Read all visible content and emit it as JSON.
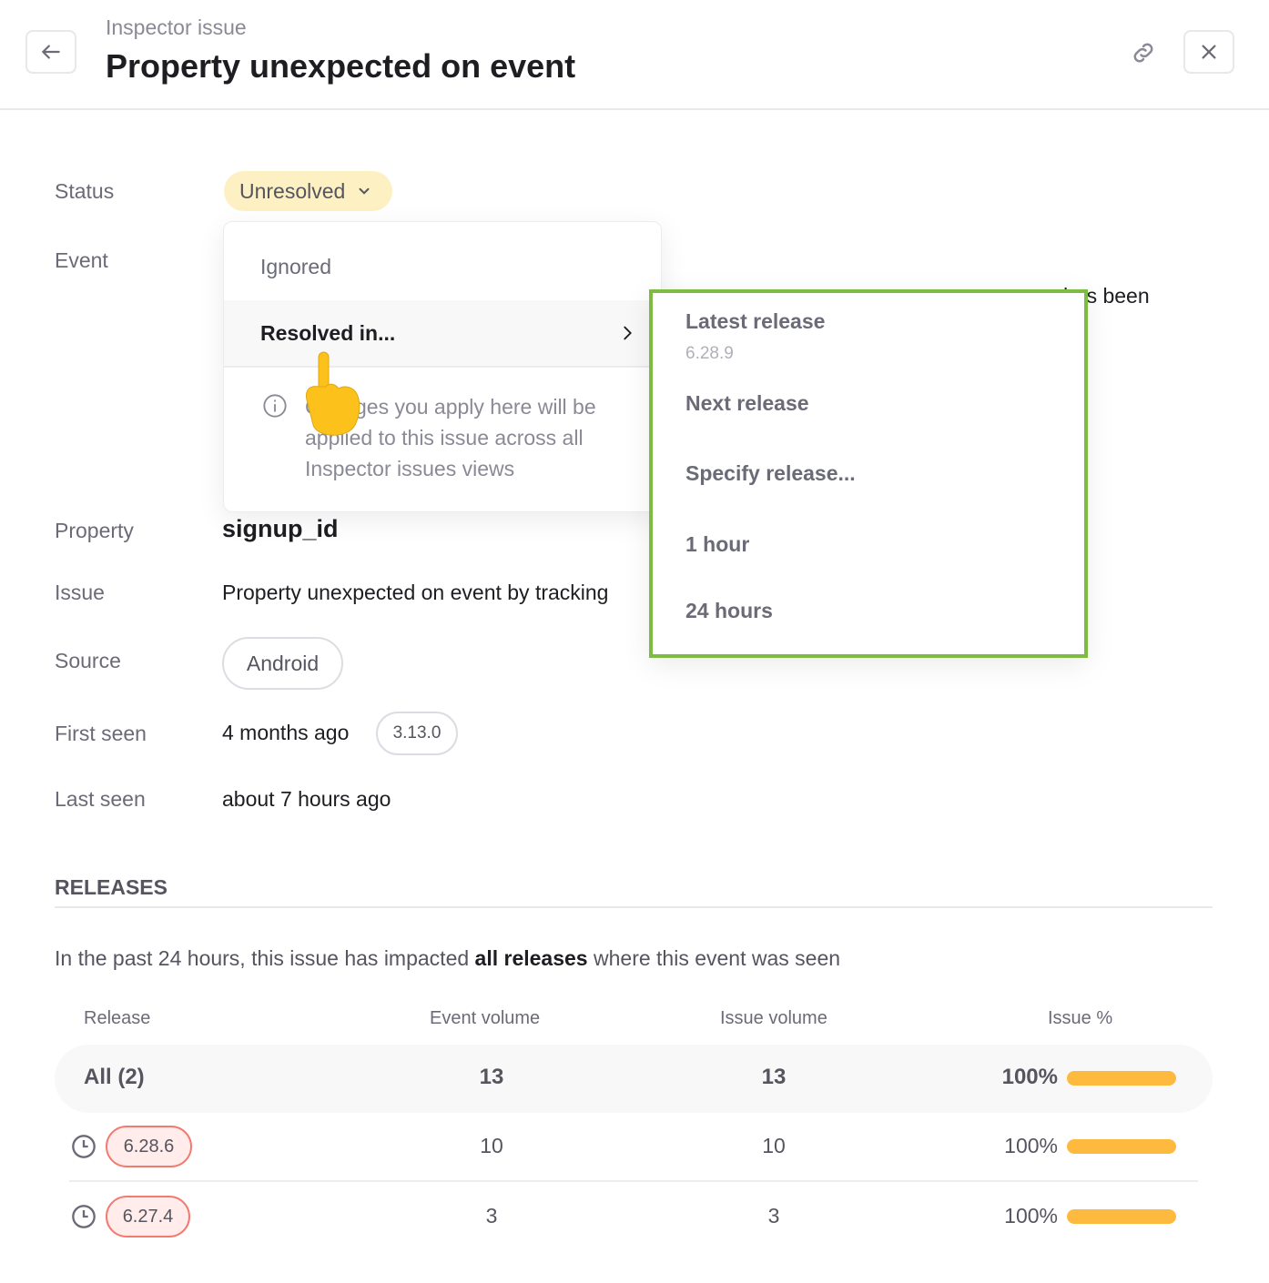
{
  "header": {
    "subtitle": "Inspector issue",
    "title": "Property unexpected on event",
    "back_icon": "arrow-left-icon",
    "link_icon": "link-icon",
    "close_icon": "close-icon"
  },
  "details": {
    "status": {
      "label": "Status",
      "value": "Unresolved"
    },
    "event": {
      "label": "Event",
      "value_fragment": "has been"
    },
    "property": {
      "label": "Property",
      "value": "signup_id"
    },
    "issue": {
      "label": "Issue",
      "value": "Property unexpected on event by tracking"
    },
    "source": {
      "label": "Source",
      "value": "Android"
    },
    "first_seen": {
      "label": "First seen",
      "value": "4 months ago",
      "version": "3.13.0"
    },
    "last_seen": {
      "label": "Last seen",
      "value": "about 7 hours ago"
    }
  },
  "status_menu": {
    "items": [
      {
        "label": "Ignored"
      },
      {
        "label": "Resolved in..."
      }
    ],
    "info": "Changes you apply here will be applied to this issue across all Inspector issues views"
  },
  "resolved_submenu": {
    "items": [
      {
        "label": "Latest release",
        "sub": "6.28.9"
      },
      {
        "label": "Next release"
      },
      {
        "label": "Specify release..."
      },
      {
        "label": "1 hour"
      },
      {
        "label": "24 hours"
      }
    ],
    "highlight_color": "#7dbb42"
  },
  "releases": {
    "heading": "RELEASES",
    "summary_pre": "In the past 24 hours, this issue has impacted ",
    "summary_bold": "all releases",
    "summary_post": " where this event was seen",
    "columns": [
      "Release",
      "Event volume",
      "Issue volume",
      "Issue %"
    ],
    "rows": [
      {
        "release": "All (2)",
        "event_volume": "13",
        "issue_volume": "13",
        "issue_pct": "100%",
        "pct": 100
      },
      {
        "release": "6.28.6",
        "event_volume": "10",
        "issue_volume": "10",
        "issue_pct": "100%",
        "pct": 100
      },
      {
        "release": "6.27.4",
        "event_volume": "3",
        "issue_volume": "3",
        "issue_pct": "100%",
        "pct": 100
      }
    ],
    "bar_color": "#fdba3f"
  }
}
